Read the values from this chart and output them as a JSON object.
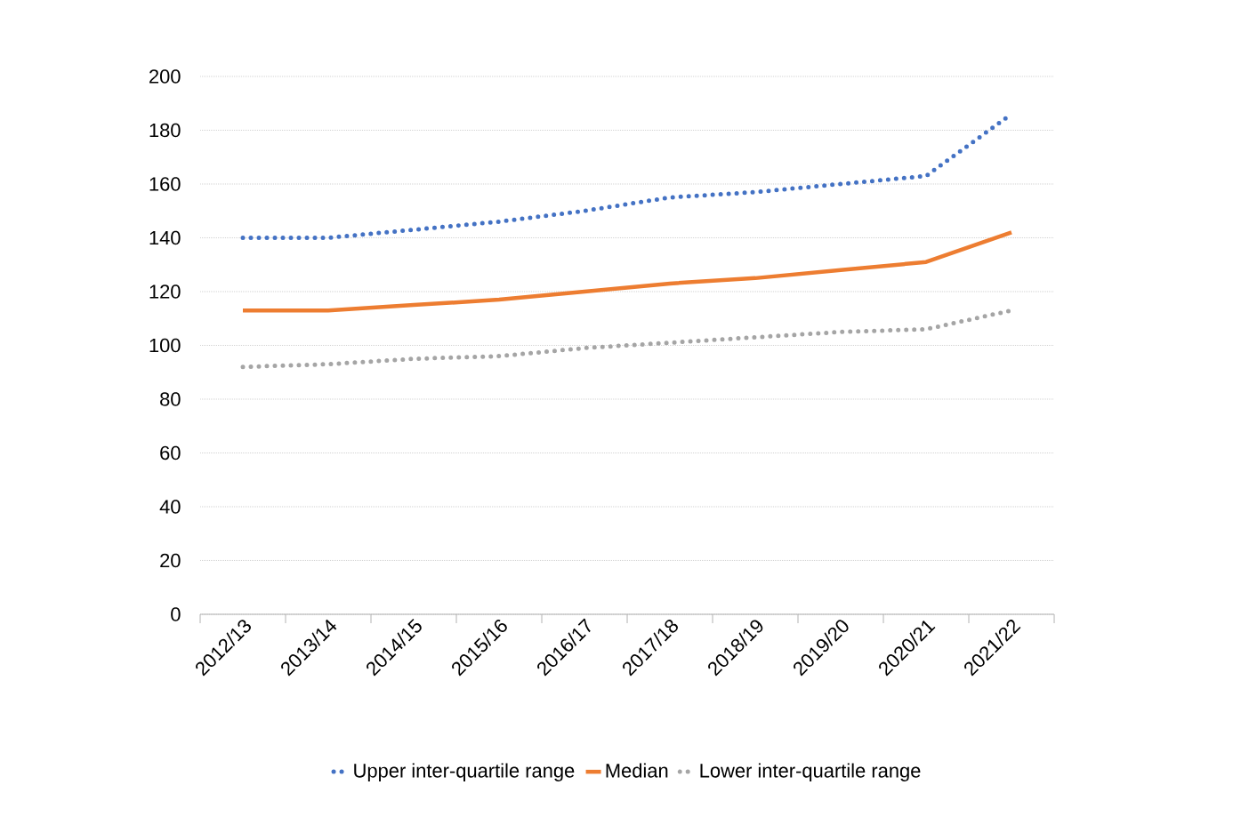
{
  "chart_data": {
    "type": "line",
    "categories": [
      "2012/13",
      "2013/14",
      "2014/15",
      "2015/16",
      "2016/17",
      "2017/18",
      "2018/19",
      "2019/20",
      "2020/21",
      "2021/22"
    ],
    "series": [
      {
        "name": "Upper inter-quartile range",
        "color": "#4472c4",
        "line_style": "dotted",
        "values": [
          140,
          140,
          143,
          146,
          150,
          155,
          157,
          160,
          163,
          186
        ]
      },
      {
        "name": "Median",
        "color": "#ed7d31",
        "line_style": "solid",
        "values": [
          113,
          113,
          115,
          117,
          120,
          123,
          125,
          128,
          131,
          142
        ]
      },
      {
        "name": "Lower inter-quartile range",
        "color": "#a5a5a5",
        "line_style": "dotted",
        "values": [
          92,
          93,
          95,
          96,
          99,
          101,
          103,
          105,
          106,
          113
        ]
      }
    ],
    "ylim": [
      0,
      200
    ],
    "yticks": [
      0,
      20,
      40,
      60,
      80,
      100,
      120,
      140,
      160,
      180,
      200
    ],
    "grid": "y",
    "legend": "bottom",
    "marker": "none"
  }
}
